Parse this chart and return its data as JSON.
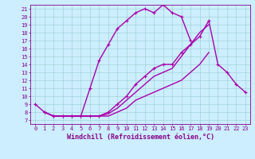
{
  "xlabel": "Windchill (Refroidissement éolien,°C)",
  "ylabel": "",
  "xlim": [
    -0.5,
    23.5
  ],
  "ylim": [
    6.5,
    21.5
  ],
  "yticks": [
    7,
    8,
    9,
    10,
    11,
    12,
    13,
    14,
    15,
    16,
    17,
    18,
    19,
    20,
    21
  ],
  "xticks": [
    0,
    1,
    2,
    3,
    4,
    5,
    6,
    7,
    8,
    9,
    10,
    11,
    12,
    13,
    14,
    15,
    16,
    17,
    18,
    19,
    20,
    21,
    22,
    23
  ],
  "background_color": "#cceeff",
  "line_color": "#aa00aa",
  "grid_color": "#99cccc",
  "lines": [
    {
      "x": [
        0,
        1,
        2,
        3,
        4,
        5,
        6,
        7,
        8,
        9,
        10,
        11,
        12,
        13,
        14,
        15,
        16,
        17
      ],
      "y": [
        9.0,
        8.0,
        7.5,
        7.5,
        7.5,
        7.5,
        11.0,
        14.5,
        16.5,
        18.5,
        19.5,
        20.5,
        21.0,
        20.5,
        21.5,
        20.5,
        20.0,
        17.0
      ],
      "marker": "+",
      "linewidth": 1.0
    },
    {
      "x": [
        1,
        2,
        3,
        4,
        5,
        6,
        7,
        8,
        9,
        10,
        11,
        12,
        13,
        14,
        15,
        16,
        17,
        18,
        19,
        20,
        21,
        22,
        23
      ],
      "y": [
        8.0,
        7.5,
        7.5,
        7.5,
        7.5,
        7.5,
        7.5,
        8.0,
        9.0,
        10.0,
        11.5,
        12.5,
        13.5,
        14.0,
        14.0,
        15.5,
        16.5,
        17.5,
        19.5,
        14.0,
        13.0,
        11.5,
        10.5
      ],
      "marker": "+",
      "linewidth": 1.0
    },
    {
      "x": [
        1,
        2,
        3,
        4,
        5,
        6,
        7,
        8,
        9,
        10,
        11,
        12,
        13,
        14,
        15,
        16,
        17,
        18,
        19,
        20,
        21,
        22,
        23
      ],
      "y": [
        8.0,
        7.5,
        7.5,
        7.5,
        7.5,
        7.5,
        7.5,
        7.8,
        8.5,
        9.5,
        10.5,
        11.5,
        12.5,
        13.0,
        13.5,
        15.0,
        16.5,
        18.0,
        19.0,
        null,
        null,
        null,
        null
      ],
      "marker": null,
      "linewidth": 1.0
    },
    {
      "x": [
        1,
        2,
        3,
        4,
        5,
        6,
        7,
        8,
        9,
        10,
        11,
        12,
        13,
        14,
        15,
        16,
        17,
        18,
        19,
        20,
        21,
        22,
        23
      ],
      "y": [
        8.0,
        7.5,
        7.5,
        7.5,
        7.5,
        7.5,
        7.5,
        7.5,
        8.0,
        8.5,
        9.5,
        10.0,
        10.5,
        11.0,
        11.5,
        12.0,
        13.0,
        14.0,
        15.5,
        null,
        null,
        null,
        null
      ],
      "marker": null,
      "linewidth": 1.0
    }
  ],
  "tick_fontsize": 5.0,
  "label_fontsize": 6.0,
  "tick_color": "#880088",
  "axis_color": "#880088"
}
